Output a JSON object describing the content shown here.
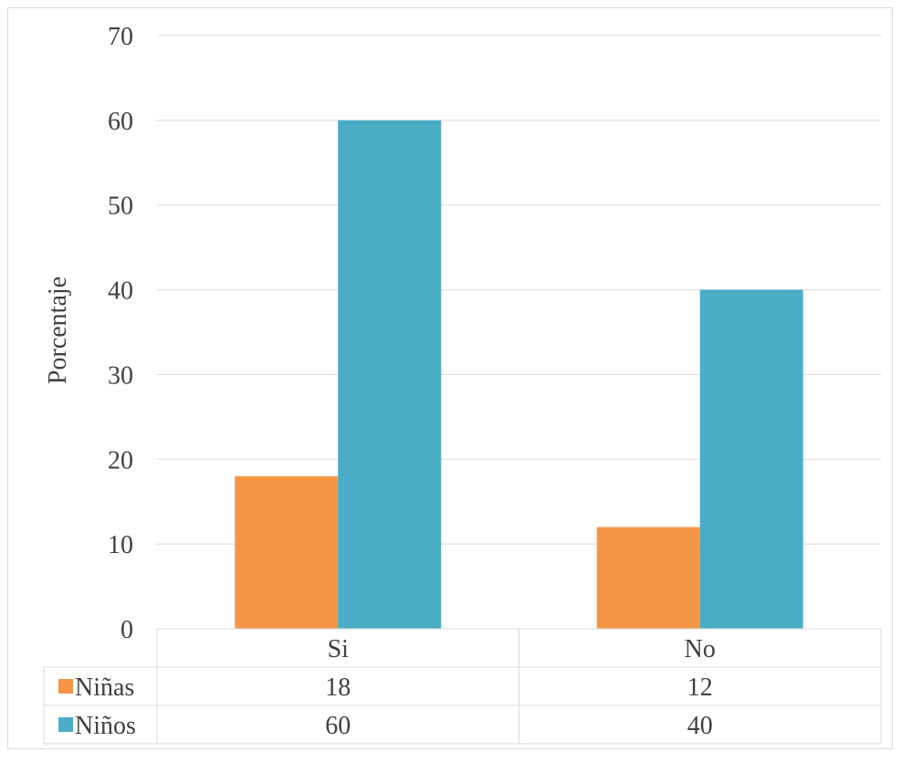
{
  "chart_data": {
    "type": "bar",
    "categories": [
      "Si",
      "No"
    ],
    "series": [
      {
        "name": "Niñas",
        "values": [
          18,
          12
        ],
        "color": "#F59646"
      },
      {
        "name": "Niños",
        "values": [
          60,
          40
        ],
        "color": "#4BACC6"
      }
    ],
    "ylabel": "Porcentaje",
    "ylim": [
      0,
      70
    ],
    "yticks": [
      "0",
      "10",
      "20",
      "30",
      "40",
      "50",
      "60",
      "70"
    ],
    "grid": true,
    "legend": "data table below chart",
    "data_table": {
      "rows": [
        {
          "label": "Niñas",
          "values": [
            "18",
            "12"
          ]
        },
        {
          "label": "Niños",
          "values": [
            "60",
            "40"
          ]
        }
      ]
    }
  }
}
